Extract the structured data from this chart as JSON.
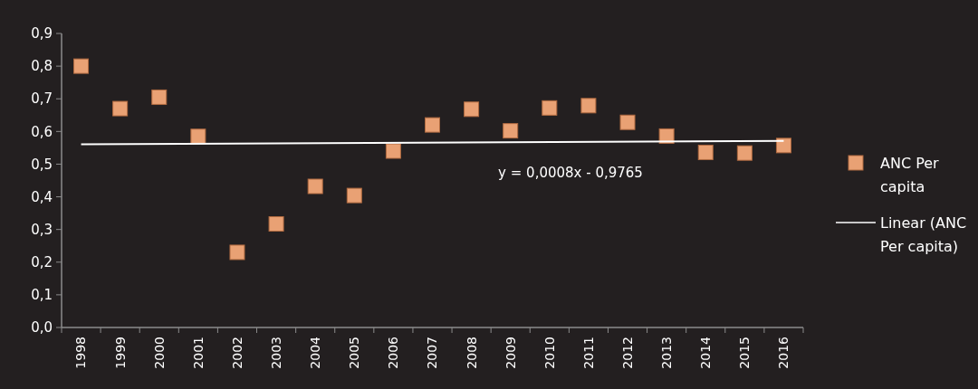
{
  "chart_data": {
    "type": "scatter",
    "categories": [
      "1998",
      "1999",
      "2000",
      "2001",
      "2002",
      "2003",
      "2004",
      "2005",
      "2006",
      "2007",
      "2008",
      "2009",
      "2010",
      "2011",
      "2012",
      "2013",
      "2014",
      "2015",
      "2016"
    ],
    "series": [
      {
        "name": "ANC Per capita",
        "type": "scatter",
        "marker": "square",
        "color": "#e9a174",
        "values": [
          0.8,
          0.67,
          0.705,
          0.585,
          0.23,
          0.317,
          0.432,
          0.404,
          0.54,
          0.62,
          0.668,
          0.602,
          0.672,
          0.679,
          0.628,
          0.586,
          0.536,
          0.534,
          0.557
        ]
      },
      {
        "name": "Linear (ANC Per capita)",
        "type": "line",
        "color": "#ffffff",
        "values": [
          0.561,
          null,
          null,
          null,
          null,
          null,
          null,
          null,
          null,
          null,
          null,
          null,
          null,
          null,
          null,
          null,
          null,
          null,
          0.571
        ]
      }
    ],
    "ylim": [
      0,
      0.9
    ],
    "yticks": [
      {
        "value": 0,
        "label": "0,0"
      },
      {
        "value": 0.1,
        "label": "0,1"
      },
      {
        "value": 0.2,
        "label": "0,2"
      },
      {
        "value": 0.3,
        "label": "0,3"
      },
      {
        "value": 0.4,
        "label": "0,4"
      },
      {
        "value": 0.5,
        "label": "0,5"
      },
      {
        "value": 0.6,
        "label": "0,6"
      },
      {
        "value": 0.7,
        "label": "0,7"
      },
      {
        "value": 0.8,
        "label": "0,8"
      },
      {
        "value": 0.9,
        "label": "0,9"
      }
    ],
    "annotations": [
      "y = 0,0008x - 0,9765"
    ],
    "legend": "right",
    "grid": false
  }
}
